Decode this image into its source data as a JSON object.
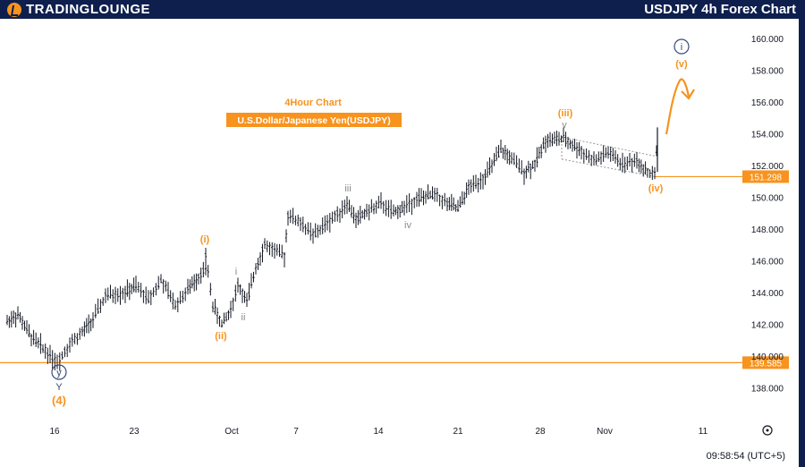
{
  "header": {
    "logo_text": "TradingLounge",
    "title": "USDJPY 4h Forex Chart"
  },
  "chart_title": {
    "line1": "4Hour Chart",
    "line2": "U.S.Dollar/Japanese Yen(USDJPY)"
  },
  "clock": "09:58:54 (UTC+5)",
  "colors": {
    "orange": "#f7931e",
    "navy": "#3a4a7a",
    "grey": "#8a8a8a",
    "bar": "#131722",
    "header_bg": "#0e1f4d"
  },
  "icons": [
    "trading-lounge-logo-icon",
    "settings-gear-icon",
    "forecast-arrow-icon"
  ],
  "chart_data": {
    "type": "ohlc",
    "yaxis": {
      "min": 137,
      "max": 161,
      "ticks": [
        "160.000",
        "158.000",
        "156.000",
        "154.000",
        "152.000",
        "150.000",
        "148.000",
        "146.000",
        "144.000",
        "142.000",
        "140.000",
        "138.000"
      ]
    },
    "xaxis": {
      "ticks": [
        "16",
        "23",
        "Oct",
        "7",
        "14",
        "21",
        "28",
        "Nov",
        "11"
      ]
    },
    "price_lines": [
      {
        "value": 151.298,
        "label": "151.298"
      },
      {
        "value": 139.585,
        "label": "139.585"
      }
    ],
    "price_path": [
      {
        "d": "Sep 12",
        "p": 142.2
      },
      {
        "d": "Sep 13",
        "p": 142.6
      },
      {
        "d": "Sep 14",
        "p": 141.2
      },
      {
        "d": "Sep 15",
        "p": 140.5
      },
      {
        "d": "Sep 16",
        "p": 139.6
      },
      {
        "d": "Sep 17",
        "p": 140.8
      },
      {
        "d": "Sep 18",
        "p": 141.5
      },
      {
        "d": "Sep 19",
        "p": 142.3
      },
      {
        "d": "Sep 20",
        "p": 143.8
      },
      {
        "d": "Sep 22",
        "p": 144.0
      },
      {
        "d": "Sep 23",
        "p": 144.4
      },
      {
        "d": "Sep 24",
        "p": 143.6
      },
      {
        "d": "Sep 25",
        "p": 144.8
      },
      {
        "d": "Sep 26",
        "p": 143.2
      },
      {
        "d": "Sep 27",
        "p": 144.2
      },
      {
        "d": "Sep 28",
        "p": 145.0
      },
      {
        "d": "Sep 29",
        "p": 145.6
      },
      {
        "d": "Sep 30",
        "p": 146.3
      },
      {
        "d": "Sep 30b",
        "p": 143.2
      },
      {
        "d": "Oct 1",
        "p": 142.0
      },
      {
        "d": "Oct 2",
        "p": 142.9
      },
      {
        "d": "Oct 3",
        "p": 144.5
      },
      {
        "d": "Oct 4",
        "p": 143.4
      },
      {
        "d": "Oct 5",
        "p": 145.6
      },
      {
        "d": "Oct 6",
        "p": 147.0
      },
      {
        "d": "Oct 7",
        "p": 146.3
      },
      {
        "d": "Oct 7b",
        "p": 148.9
      },
      {
        "d": "Oct 8",
        "p": 148.4
      },
      {
        "d": "Oct 9",
        "p": 147.6
      },
      {
        "d": "Oct 10",
        "p": 148.4
      },
      {
        "d": "Oct 11",
        "p": 149.1
      },
      {
        "d": "Oct 12",
        "p": 149.6
      },
      {
        "d": "Oct 13",
        "p": 148.6
      },
      {
        "d": "Oct 14",
        "p": 149.1
      },
      {
        "d": "Oct 15",
        "p": 149.6
      },
      {
        "d": "Oct 16",
        "p": 149.0
      },
      {
        "d": "Oct 17",
        "p": 149.4
      },
      {
        "d": "Oct 18",
        "p": 149.9
      },
      {
        "d": "Oct 19",
        "p": 150.2
      },
      {
        "d": "Oct 20",
        "p": 149.6
      },
      {
        "d": "Oct 21",
        "p": 149.3
      },
      {
        "d": "Oct 22",
        "p": 150.6
      },
      {
        "d": "Oct 23",
        "p": 151.2
      },
      {
        "d": "Oct 24",
        "p": 152.0
      },
      {
        "d": "Oct 25",
        "p": 153.0
      },
      {
        "d": "Oct 26",
        "p": 152.4
      },
      {
        "d": "Oct 27",
        "p": 151.6
      },
      {
        "d": "Oct 28",
        "p": 152.1
      },
      {
        "d": "Oct 29",
        "p": 153.6
      },
      {
        "d": "Oct 30",
        "p": 153.7
      },
      {
        "d": "Oct 31",
        "p": 152.9
      },
      {
        "d": "Nov 1",
        "p": 152.3
      },
      {
        "d": "Nov 2",
        "p": 152.8
      },
      {
        "d": "Nov 3",
        "p": 152.1
      },
      {
        "d": "Nov 4",
        "p": 152.3
      },
      {
        "d": "Nov 5",
        "p": 151.6
      },
      {
        "d": "Nov 5b",
        "p": 151.4
      },
      {
        "d": "Nov 6",
        "p": 153.0
      },
      {
        "d": "Nov 6b",
        "p": 154.3
      }
    ],
    "wave_labels": [
      {
        "text": "(i)",
        "color": "orange",
        "price": 146.8,
        "d": "Sep 30"
      },
      {
        "text": "(ii)",
        "color": "orange",
        "price": 141.2,
        "d": "Oct 1"
      },
      {
        "text": "i",
        "color": "grey",
        "price": 145.2,
        "d": "Oct 3"
      },
      {
        "text": "ii",
        "color": "grey",
        "price": 142.2,
        "d": "Oct 4"
      },
      {
        "text": "iii",
        "color": "grey",
        "price": 150.2,
        "d": "Oct 12"
      },
      {
        "text": "iv",
        "color": "grey",
        "price": 148.0,
        "d": "Oct 15"
      },
      {
        "text": "(iii)",
        "color": "orange",
        "price": 154.9,
        "d": "Oct 30"
      },
      {
        "text": "v",
        "color": "grey",
        "price": 154.1,
        "d": "Oct 30"
      },
      {
        "text": "(iv)",
        "color": "orange",
        "price": 150.6,
        "d": "Nov 5"
      },
      {
        "text": "(v)",
        "color": "orange",
        "price": 158.0,
        "d": "Nov 8"
      },
      {
        "text": "i",
        "color": "navy",
        "price": 159.7,
        "d": "Nov 8",
        "circled": true
      },
      {
        "text": "y",
        "color": "navy",
        "price": 138.9,
        "d": "Sep 16",
        "circled": true
      },
      {
        "text": "Y",
        "color": "navy",
        "price": 137.9,
        "d": "Sep 16"
      },
      {
        "text": "(4)",
        "color": "orange",
        "price": 136.9,
        "d": "Sep 16"
      }
    ]
  }
}
